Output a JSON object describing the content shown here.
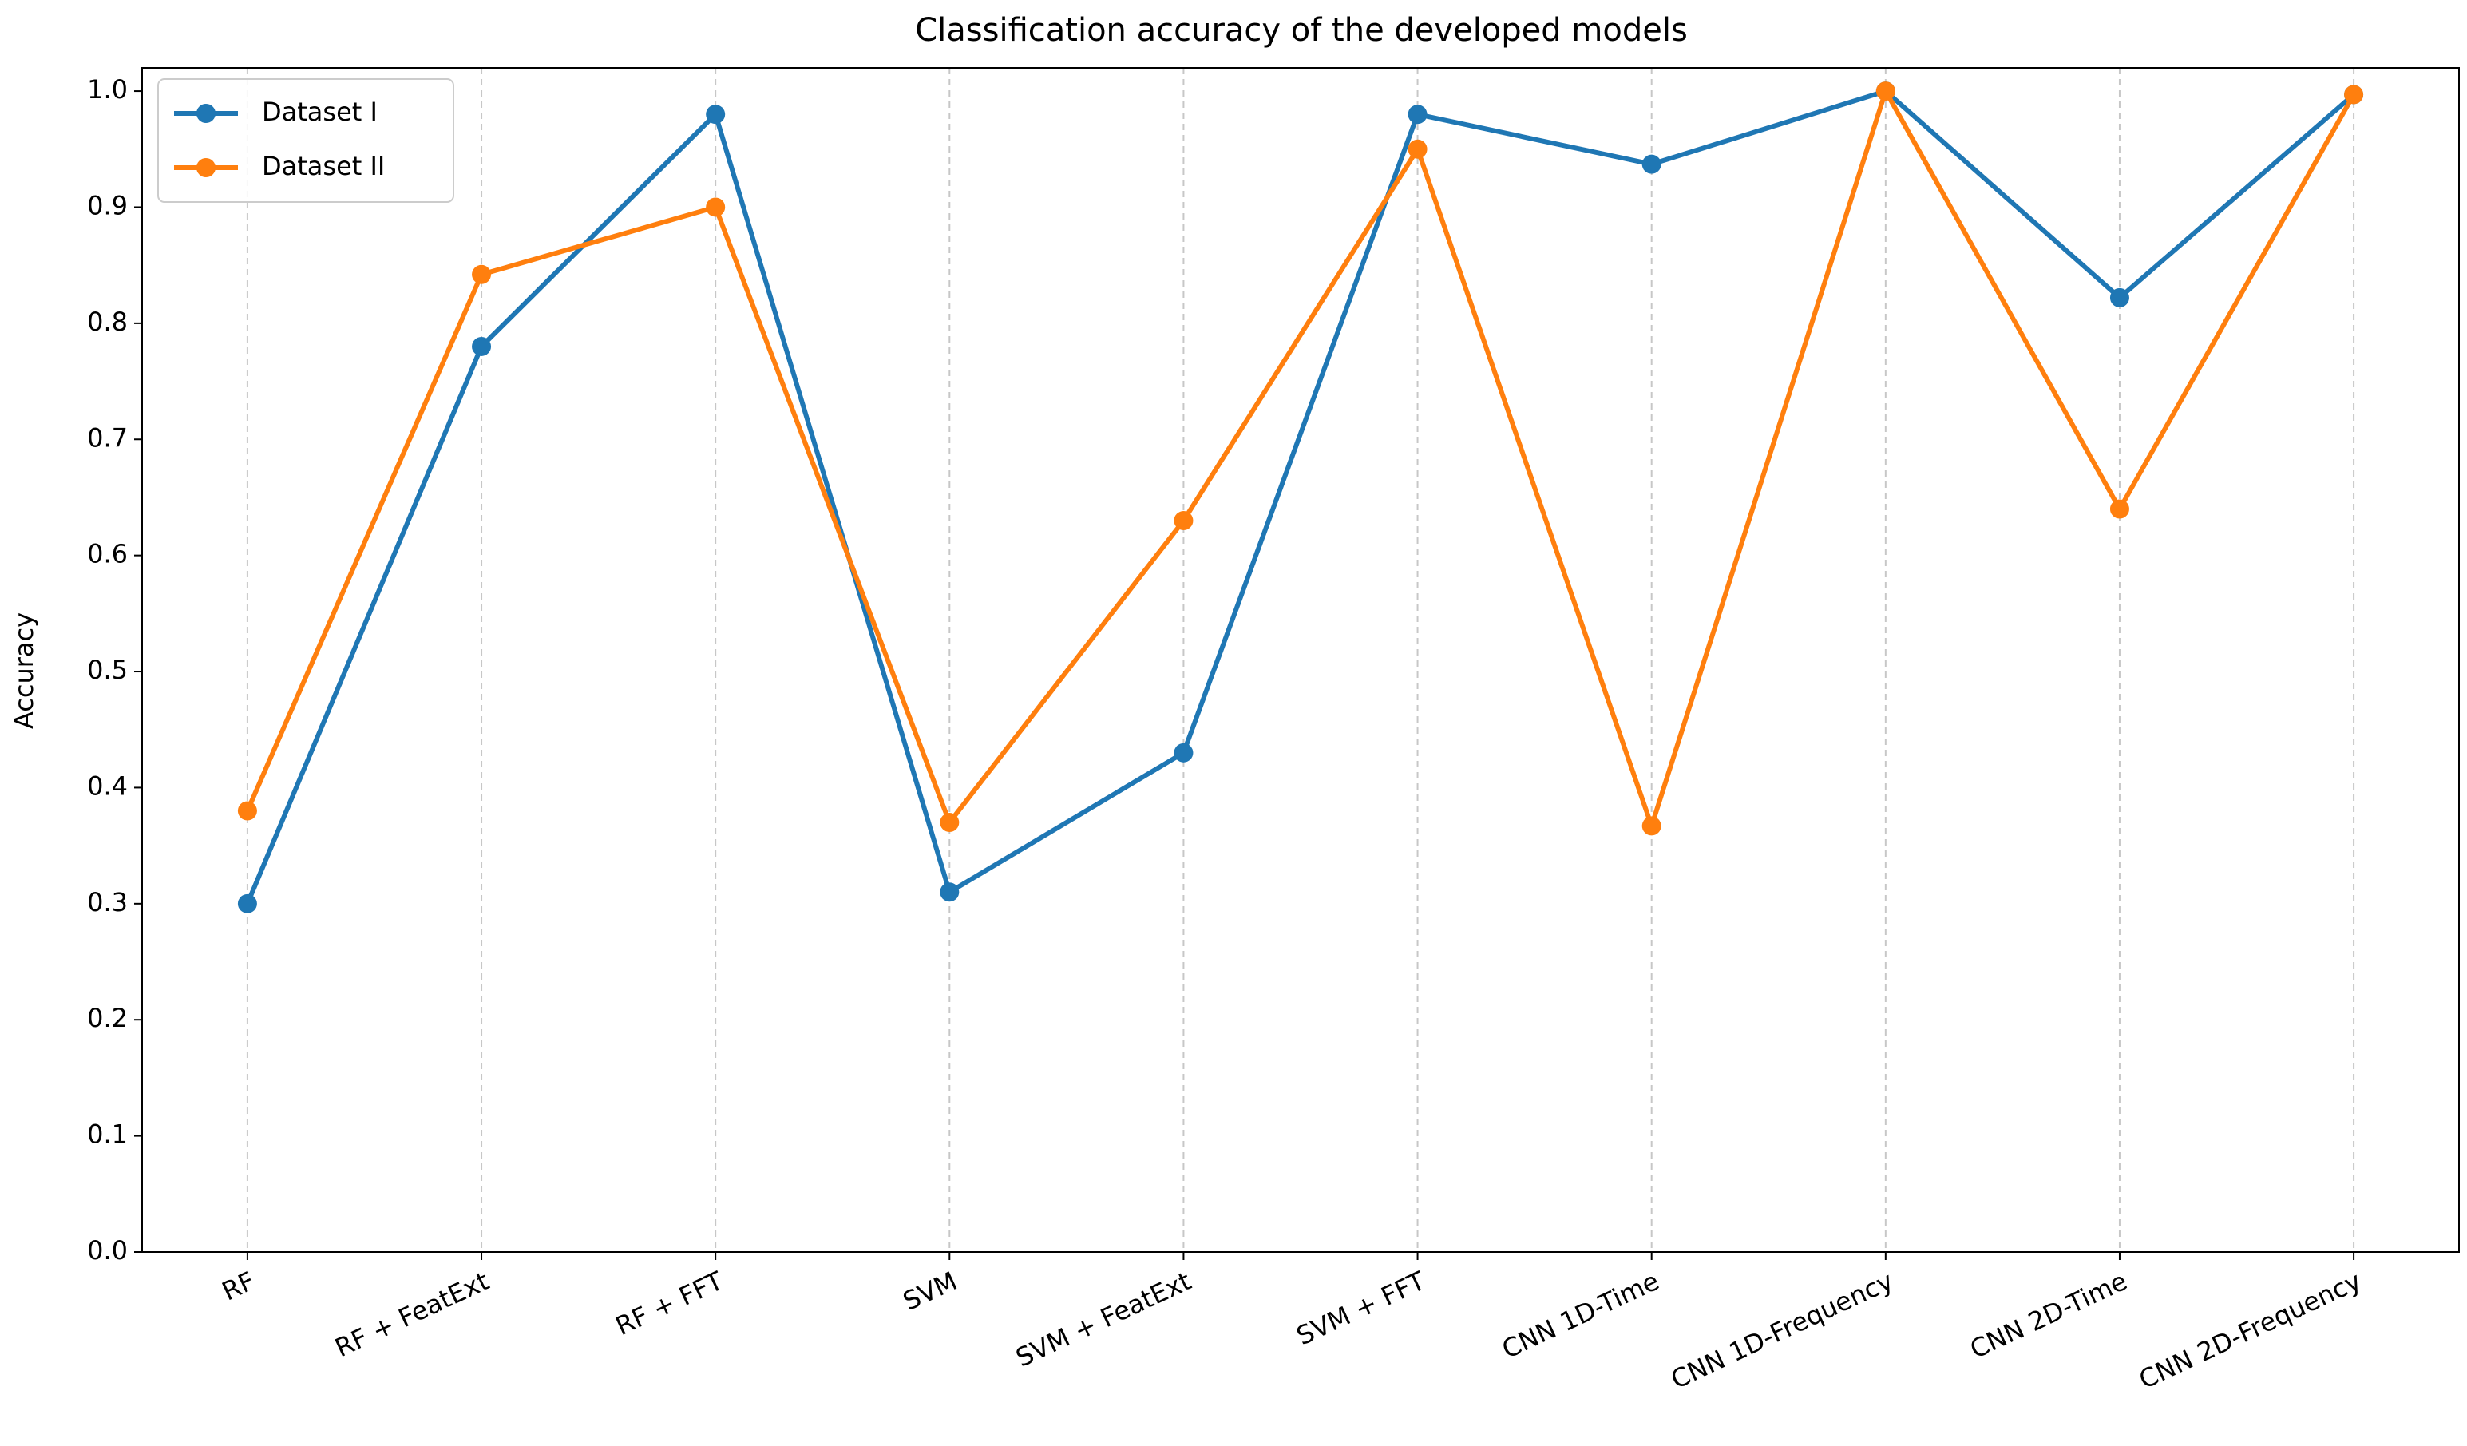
{
  "chart_data": {
    "type": "line",
    "title": "Classification accuracy of the developed models",
    "ylabel": "Accuracy",
    "categories": [
      "RF",
      "RF + FeatExt",
      "RF + FFT",
      "SVM",
      "SVM + FeatExt",
      "SVM + FFT",
      "CNN 1D-Time",
      "CNN 1D-Frequency",
      "CNN 2D-Time",
      "CNN 2D-Frequency"
    ],
    "series": [
      {
        "name": "Dataset I",
        "color": "#1f77b4",
        "values": [
          0.3,
          0.78,
          0.98,
          0.31,
          0.43,
          0.98,
          0.937,
          1.0,
          0.822,
          0.997
        ]
      },
      {
        "name": "Dataset II",
        "color": "#ff7f0e",
        "values": [
          0.38,
          0.842,
          0.9,
          0.37,
          0.63,
          0.95,
          0.367,
          1.0,
          0.64,
          0.997
        ]
      }
    ],
    "ylim": [
      0,
      1.02
    ],
    "yticks": [
      {
        "value": 0,
        "label": "0.0"
      },
      0.1,
      0.2,
      0.3,
      0.4,
      0.5,
      0.6,
      0.7,
      0.8,
      0.9,
      {
        "value": 1,
        "label": "1.0"
      }
    ],
    "grid": "x",
    "legend": "upper-left"
  }
}
